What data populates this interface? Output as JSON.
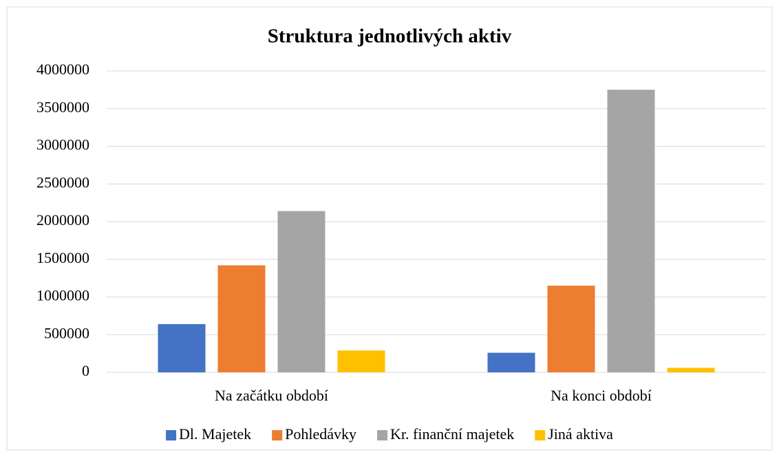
{
  "chart_data": {
    "type": "bar",
    "title": "Struktura jednotlivých aktiv",
    "categories": [
      "Na začátku období",
      "Na konci období"
    ],
    "series": [
      {
        "name": "Dl. Majetek",
        "color": "#4472c4",
        "values": [
          640000,
          260000
        ]
      },
      {
        "name": "Pohledávky",
        "color": "#ed7d31",
        "values": [
          1420000,
          1150000
        ]
      },
      {
        "name": "Kr. finanční majetek",
        "color": "#a5a5a5",
        "values": [
          2140000,
          3750000
        ]
      },
      {
        "name": "Jiná aktiva",
        "color": "#ffc000",
        "values": [
          290000,
          60000
        ]
      }
    ],
    "ylim": [
      0,
      4000000
    ],
    "yticks": [
      0,
      500000,
      1000000,
      1500000,
      2000000,
      2500000,
      3000000,
      3500000,
      4000000
    ],
    "grid": true,
    "legend": "bottom"
  }
}
